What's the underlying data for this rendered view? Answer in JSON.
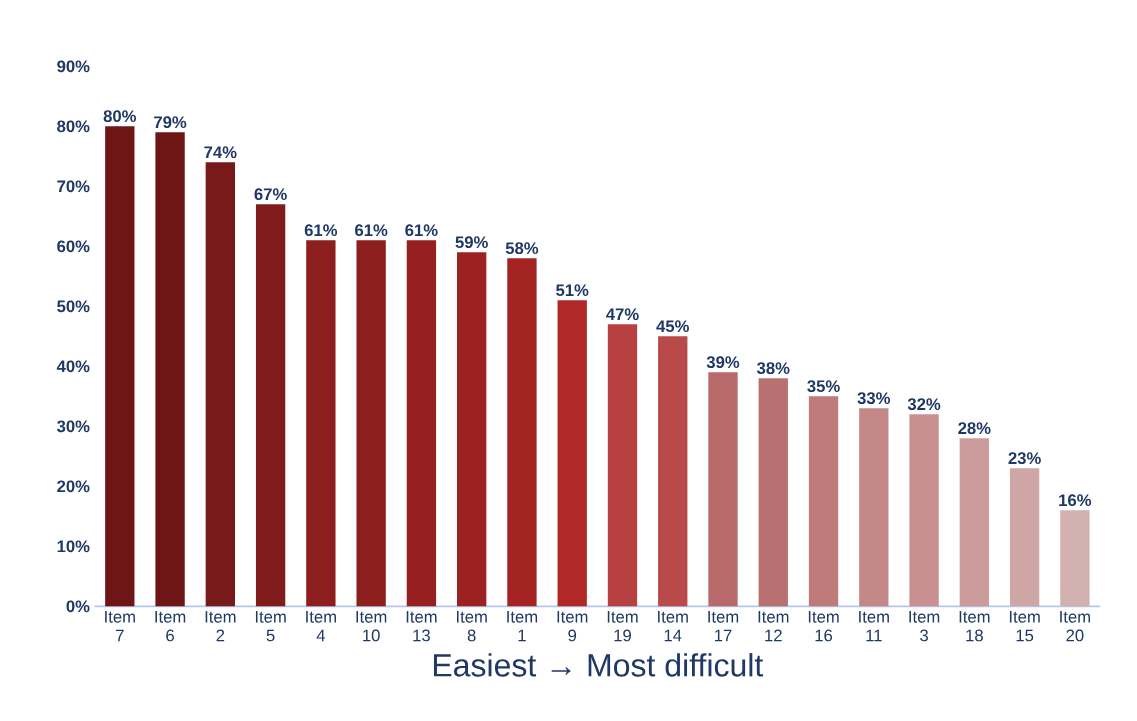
{
  "chart_data": {
    "type": "bar",
    "xlabel": "Easiest → Most difficult",
    "categories": [
      "Item 7",
      "Item 6",
      "Item 2",
      "Item 5",
      "Item 4",
      "Item 10",
      "Item 13",
      "Item 8",
      "Item 1",
      "Item 9",
      "Item 19",
      "Item 14",
      "Item 17",
      "Item 12",
      "Item 16",
      "Item 11",
      "Item 3",
      "Item 18",
      "Item 15",
      "Item 20"
    ],
    "values": [
      80,
      79,
      74,
      67,
      61,
      61,
      61,
      59,
      58,
      51,
      47,
      45,
      39,
      38,
      35,
      33,
      32,
      28,
      23,
      16
    ],
    "value_labels": [
      "80%",
      "79%",
      "74%",
      "67%",
      "61%",
      "61%",
      "61%",
      "59%",
      "58%",
      "51%",
      "47%",
      "45%",
      "39%",
      "38%",
      "35%",
      "33%",
      "32%",
      "28%",
      "23%",
      "16%"
    ],
    "colors": [
      "#6e1616",
      "#6e1616",
      "#781a1a",
      "#801c1c",
      "#8c1e1e",
      "#8c1e1e",
      "#962020",
      "#9c2222",
      "#a42424",
      "#b02828",
      "#b84040",
      "#b84a4a",
      "#b86a6a",
      "#b87070",
      "#bf7a7a",
      "#c48888",
      "#c89090",
      "#cc9c9c",
      "#cfa6a6",
      "#d2b0b0"
    ],
    "ylim": [
      0,
      90
    ],
    "yticks": [
      {
        "value": 0,
        "label": "0%"
      },
      {
        "value": 10,
        "label": "10%"
      },
      {
        "value": 20,
        "label": "20%"
      },
      {
        "value": 30,
        "label": "30%"
      },
      {
        "value": 40,
        "label": "40%"
      },
      {
        "value": 50,
        "label": "50%"
      },
      {
        "value": 60,
        "label": "60%"
      },
      {
        "value": 70,
        "label": "70%"
      },
      {
        "value": 80,
        "label": "80%"
      },
      {
        "value": 90,
        "label": "90%"
      }
    ]
  }
}
